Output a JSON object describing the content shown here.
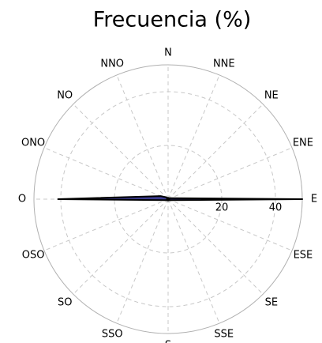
{
  "chart_data": {
    "type": "polar-area",
    "title": "Frecuencia (%)",
    "categories": [
      "N",
      "NNE",
      "NE",
      "ENE",
      "E",
      "ESE",
      "SE",
      "SSE",
      "S",
      "SSO",
      "SO",
      "OSO",
      "O",
      "ONO",
      "NO",
      "NNO"
    ],
    "values": [
      0.5,
      0.5,
      0.5,
      1,
      50,
      1,
      0.5,
      0.5,
      0.5,
      0.5,
      0.5,
      1,
      41,
      3,
      1,
      0.5
    ],
    "color": "#3b3b8f",
    "rlim": [
      0,
      50
    ],
    "rticks": [
      20,
      40
    ],
    "grid": true
  }
}
